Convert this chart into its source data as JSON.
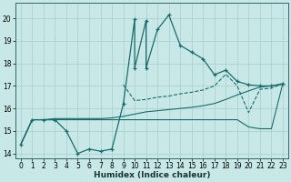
{
  "xlabel": "Humidex (Indice chaleur)",
  "bg_color": "#c8e8e8",
  "grid_color": "#a8cccc",
  "line_color": "#1a6b6b",
  "xlim_min": -0.5,
  "xlim_max": 23.5,
  "ylim_min": 13.8,
  "ylim_max": 20.7,
  "ytick_vals": [
    14,
    15,
    16,
    17,
    18,
    19,
    20
  ],
  "xtick_vals": [
    0,
    1,
    2,
    3,
    4,
    5,
    6,
    7,
    8,
    9,
    10,
    11,
    12,
    13,
    14,
    15,
    16,
    17,
    18,
    19,
    20,
    21,
    22,
    23
  ],
  "main_x": [
    0,
    1,
    2,
    3,
    4,
    5,
    6,
    7,
    8,
    9,
    10,
    10,
    11,
    11,
    12,
    13,
    14,
    15,
    16,
    17,
    18,
    19,
    20,
    21,
    22,
    23
  ],
  "main_y": [
    14.4,
    15.5,
    15.5,
    15.5,
    15.0,
    14.0,
    14.2,
    14.1,
    14.2,
    16.2,
    19.95,
    17.8,
    19.9,
    17.8,
    19.5,
    20.15,
    18.8,
    18.5,
    18.2,
    17.5,
    17.7,
    17.2,
    17.05,
    17.0,
    17.0,
    17.1
  ],
  "trend_upper_x": [
    0,
    1,
    2,
    3,
    4,
    5,
    6,
    7,
    8,
    9,
    10,
    11,
    12,
    13,
    14,
    15,
    16,
    17,
    18,
    19,
    20,
    21,
    22,
    23
  ],
  "trend_upper_y": [
    14.4,
    15.5,
    15.5,
    15.55,
    15.55,
    15.55,
    15.55,
    15.55,
    15.58,
    15.65,
    15.75,
    15.85,
    15.9,
    15.95,
    16.0,
    16.05,
    16.12,
    16.22,
    16.4,
    16.6,
    16.78,
    16.95,
    17.0,
    17.08
  ],
  "trend_lower_x": [
    0,
    1,
    2,
    3,
    4,
    5,
    6,
    7,
    8,
    9,
    10,
    11,
    12,
    13,
    14,
    15,
    16,
    17,
    18,
    19,
    20,
    21,
    22,
    23
  ],
  "trend_lower_y": [
    14.4,
    15.5,
    15.5,
    15.5,
    15.5,
    15.5,
    15.5,
    15.5,
    15.5,
    15.5,
    15.5,
    15.5,
    15.5,
    15.5,
    15.5,
    15.5,
    15.5,
    15.5,
    15.5,
    15.5,
    15.18,
    15.1,
    15.1,
    17.1
  ],
  "dashed_x": [
    9,
    10,
    11,
    12,
    13,
    14,
    15,
    16,
    17,
    18,
    19,
    20,
    21,
    22,
    23
  ],
  "dashed_y": [
    17.05,
    16.35,
    16.4,
    16.5,
    16.55,
    16.65,
    16.72,
    16.82,
    17.0,
    17.52,
    17.0,
    15.82,
    16.85,
    16.9,
    17.1
  ]
}
